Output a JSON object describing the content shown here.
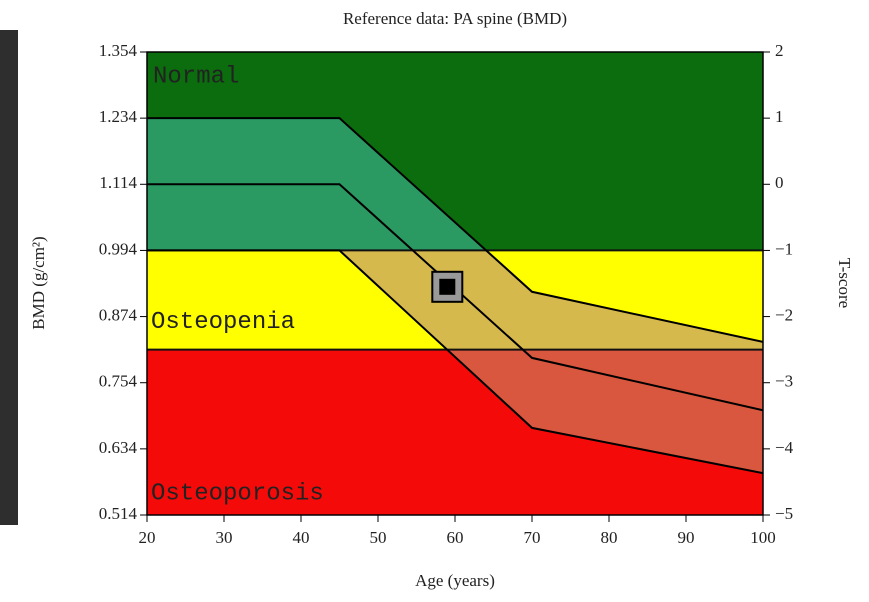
{
  "chart_data": {
    "type": "line",
    "title": "Reference data: PA spine (BMD)",
    "xlabel": "Age (years)",
    "ylabel": "BMD (g/cm²)",
    "y2label": "T-score",
    "xlim": [
      20,
      100
    ],
    "xticks": [
      20,
      30,
      40,
      50,
      60,
      70,
      80,
      90,
      100
    ],
    "ylim": [
      0.514,
      1.354
    ],
    "yticks": [
      0.514,
      0.634,
      0.754,
      0.874,
      0.994,
      1.114,
      1.234,
      1.354
    ],
    "y2lim": [
      -5,
      2
    ],
    "y2ticks": [
      {
        "value": -5,
        "label": "−5"
      },
      {
        "value": -4,
        "label": "−4"
      },
      {
        "value": -3,
        "label": "−3"
      },
      {
        "value": -2,
        "label": "−2"
      },
      {
        "value": -1,
        "label": "−1"
      },
      0,
      1,
      2
    ],
    "zones": [
      {
        "label": "Normal",
        "from": 0.994,
        "to": 1.354,
        "color": "#0b6d0d",
        "band_color": "#2a9a62",
        "label_color": "#c8f0c0"
      },
      {
        "label": "Osteopenia",
        "from": 0.814,
        "to": 0.994,
        "color": "#ffff00",
        "band_color": "#d6b94c",
        "label_color": "#1a5a10"
      },
      {
        "label": "Osteoporosis",
        "from": 0.514,
        "to": 0.814,
        "color": "#f50a0a",
        "band_color": "#d9563f",
        "label_color": "#8a1010"
      }
    ],
    "x": [
      20,
      45,
      70,
      100
    ],
    "series": [
      {
        "color": "#000000",
        "values": [
          1.234,
          1.234,
          0.919,
          0.828
        ]
      },
      {
        "color": "#000000",
        "values": [
          1.114,
          1.114,
          0.799,
          0.704
        ]
      },
      {
        "color": "#000000",
        "values": [
          0.994,
          0.994,
          0.672,
          0.59
        ]
      }
    ],
    "marker": {
      "x": 59,
      "y": 0.928
    }
  }
}
